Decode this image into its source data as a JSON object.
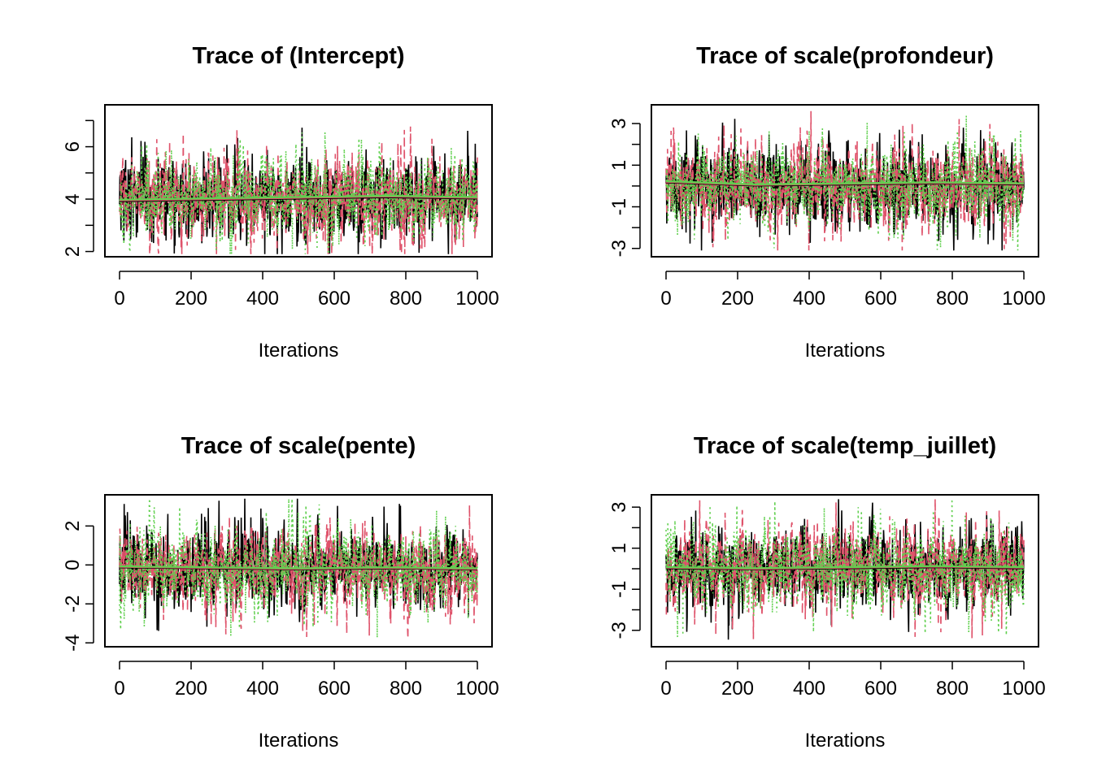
{
  "chart_data": [
    {
      "type": "line",
      "title": "Trace of (Intercept)",
      "xlabel": "Iterations",
      "ylabel": "",
      "xlim": [
        0,
        1000
      ],
      "ylim": [
        1.8,
        7.6
      ],
      "x_ticks": [
        0,
        200,
        400,
        600,
        800,
        1000
      ],
      "y_major_ticks": [
        2,
        4,
        6
      ],
      "y_minor_ticks": [
        3,
        5,
        7
      ],
      "center": 4.0,
      "spread": 0.75,
      "min": 1.9,
      "max": 7.5,
      "smooth": [
        [
          0,
          3.95
        ],
        [
          250,
          4.0
        ],
        [
          500,
          4.05
        ],
        [
          750,
          4.1
        ],
        [
          1000,
          4.05
        ]
      ],
      "series": [
        {
          "color": "#000000",
          "dash": "solid"
        },
        {
          "color": "#DF536B",
          "dash": "dashed"
        },
        {
          "color": "#61D04F",
          "dash": "dotted"
        }
      ]
    },
    {
      "type": "line",
      "title": "Trace of scale(profondeur)",
      "xlabel": "Iterations",
      "ylabel": "",
      "xlim": [
        0,
        1000
      ],
      "ylim": [
        -3.4,
        3.9
      ],
      "x_ticks": [
        0,
        200,
        400,
        600,
        800,
        1000
      ],
      "y_major_ticks": [
        -3,
        -1,
        1,
        3
      ],
      "y_minor_ticks": [
        -2,
        0,
        2
      ],
      "center": 0.0,
      "spread": 0.95,
      "min": -3.1,
      "max": 3.6,
      "smooth": [
        [
          0,
          0.2
        ],
        [
          250,
          0.05
        ],
        [
          500,
          0.1
        ],
        [
          750,
          0.15
        ],
        [
          1000,
          0.1
        ]
      ],
      "series": [
        {
          "color": "#000000",
          "dash": "solid"
        },
        {
          "color": "#DF536B",
          "dash": "dashed"
        },
        {
          "color": "#61D04F",
          "dash": "dotted"
        }
      ]
    },
    {
      "type": "line",
      "title": "Trace of scale(pente)",
      "xlabel": "Iterations",
      "ylabel": "",
      "xlim": [
        0,
        1000
      ],
      "ylim": [
        -4.2,
        3.6
      ],
      "x_ticks": [
        0,
        200,
        400,
        600,
        800,
        1000
      ],
      "y_major_ticks": [
        -4,
        -2,
        0,
        2
      ],
      "y_minor_ticks": [],
      "center": -0.2,
      "spread": 1.0,
      "min": -4.0,
      "max": 3.4,
      "smooth": [
        [
          0,
          -0.1
        ],
        [
          250,
          -0.15
        ],
        [
          500,
          -0.2
        ],
        [
          750,
          -0.15
        ],
        [
          1000,
          -0.2
        ]
      ],
      "series": [
        {
          "color": "#000000",
          "dash": "solid"
        },
        {
          "color": "#DF536B",
          "dash": "dashed"
        },
        {
          "color": "#61D04F",
          "dash": "dotted"
        }
      ]
    },
    {
      "type": "line",
      "title": "Trace of scale(temp_juillet)",
      "xlabel": "Iterations",
      "ylabel": "",
      "xlim": [
        0,
        1000
      ],
      "ylim": [
        -3.8,
        3.6
      ],
      "x_ticks": [
        0,
        200,
        400,
        600,
        800,
        1000
      ],
      "y_major_ticks": [
        -3,
        -1,
        1,
        3
      ],
      "y_minor_ticks": [
        -2,
        0,
        2
      ],
      "center": 0.0,
      "spread": 0.95,
      "min": -3.5,
      "max": 3.4,
      "smooth": [
        [
          0,
          0.05
        ],
        [
          250,
          0.0
        ],
        [
          500,
          0.05
        ],
        [
          750,
          0.1
        ],
        [
          1000,
          0.05
        ]
      ],
      "series": [
        {
          "color": "#000000",
          "dash": "solid"
        },
        {
          "color": "#DF536B",
          "dash": "dashed"
        },
        {
          "color": "#61D04F",
          "dash": "dotted"
        }
      ]
    }
  ]
}
